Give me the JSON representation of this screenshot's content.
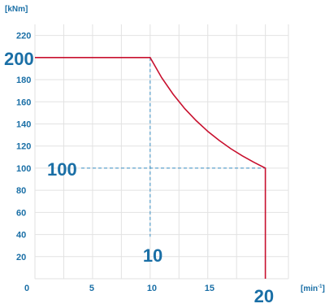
{
  "chart_data": {
    "type": "line",
    "ylabel": "[kNm]",
    "xlabel": "[min",
    "xlabel_sup": "-1",
    "xlabel_close": "]",
    "xlim": [
      0,
      20
    ],
    "ylim": [
      0,
      230
    ],
    "x_ticks": [
      "0",
      "5",
      "10",
      "15"
    ],
    "y_ticks": [
      "20",
      "40",
      "60",
      "80",
      "100",
      "120",
      "140",
      "160",
      "180",
      "220"
    ],
    "grid": true,
    "series": [
      {
        "color": "#c8102e",
        "points": [
          [
            0,
            200
          ],
          [
            10,
            200
          ],
          [
            11,
            181.8
          ],
          [
            12,
            166.7
          ],
          [
            13,
            153.8
          ],
          [
            14,
            142.9
          ],
          [
            15,
            133.3
          ],
          [
            16,
            125
          ],
          [
            17,
            117.6
          ],
          [
            18,
            111.1
          ],
          [
            19,
            105.3
          ],
          [
            20,
            100
          ],
          [
            20,
            0
          ]
        ]
      }
    ],
    "annotations": [
      {
        "label": "200",
        "x": 0,
        "y": 200
      },
      {
        "label": "100",
        "x": 0,
        "y": 100
      },
      {
        "label": "10",
        "x": 10,
        "y": 0
      },
      {
        "label": "20",
        "x": 20,
        "y": 0
      }
    ],
    "guide_color": "#3a8fc4",
    "text_color": "#1a6fa6",
    "grid_color": "#e2e2e2"
  }
}
